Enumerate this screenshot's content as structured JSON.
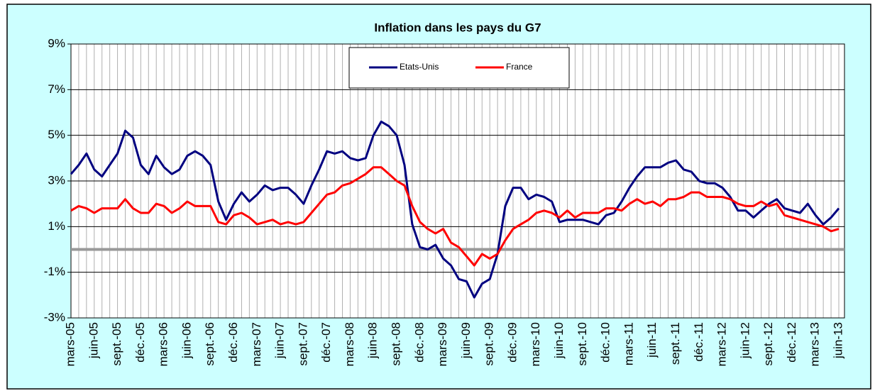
{
  "chart_data": {
    "type": "line",
    "title": "Inflation dans les pays du G7",
    "categories": [
      "mars-05",
      null,
      null,
      "juin-05",
      null,
      null,
      "sept.-05",
      null,
      null,
      "déc.-05",
      null,
      null,
      "mars-06",
      null,
      null,
      "juin-06",
      null,
      null,
      "sept.-06",
      null,
      null,
      "déc.-06",
      null,
      null,
      "mars-07",
      null,
      null,
      "juin-07",
      null,
      null,
      "sept.-07",
      null,
      null,
      "déc.-07",
      null,
      null,
      "mars-08",
      null,
      null,
      "juin-08",
      null,
      null,
      "sept.-08",
      null,
      null,
      "déc.-08",
      null,
      null,
      "mars-09",
      null,
      null,
      "juin-09",
      null,
      null,
      "sept.-09",
      null,
      null,
      "déc.-09",
      null,
      null,
      "mars-10",
      null,
      null,
      "juin-10",
      null,
      null,
      "sept.-10",
      null,
      null,
      "déc.-10",
      null,
      null,
      "mars-11",
      null,
      null,
      "juin-11",
      null,
      null,
      "sept.-11",
      null,
      null,
      "déc.-11",
      null,
      null,
      "mars-12",
      null,
      null,
      "juin-12",
      null,
      null,
      "sept.-12",
      null,
      null,
      "déc.-12",
      null,
      null,
      "mars-13",
      null,
      null,
      "juin-13"
    ],
    "series": [
      {
        "name": "Etats-Unis",
        "color": "#000080",
        "values": [
          3.3,
          3.7,
          4.2,
          3.5,
          3.2,
          3.7,
          4.2,
          5.2,
          4.9,
          3.7,
          3.3,
          4.1,
          3.6,
          3.3,
          3.5,
          4.1,
          4.3,
          4.1,
          3.7,
          2.1,
          1.3,
          2.0,
          2.5,
          2.1,
          2.4,
          2.8,
          2.6,
          2.7,
          2.7,
          2.4,
          2.0,
          2.8,
          3.5,
          4.3,
          4.2,
          4.3,
          4.0,
          3.9,
          4.0,
          5.0,
          5.6,
          5.4,
          5.0,
          3.7,
          1.1,
          0.1,
          0.0,
          0.2,
          -0.4,
          -0.7,
          -1.3,
          -1.4,
          -2.1,
          -1.5,
          -1.3,
          -0.2,
          1.9,
          2.7,
          2.7,
          2.2,
          2.4,
          2.3,
          2.1,
          1.2,
          1.3,
          1.3,
          1.3,
          1.2,
          1.1,
          1.5,
          1.6,
          2.1,
          2.7,
          3.2,
          3.6,
          3.6,
          3.6,
          3.8,
          3.9,
          3.5,
          3.4,
          3.0,
          2.9,
          2.9,
          2.7,
          2.3,
          1.7,
          1.7,
          1.4,
          1.7,
          2.0,
          2.2,
          1.8,
          1.7,
          1.6,
          2.0,
          1.5,
          1.1,
          1.4,
          1.8
        ]
      },
      {
        "name": "France",
        "color": "#ff0000",
        "values": [
          1.7,
          1.9,
          1.8,
          1.6,
          1.8,
          1.8,
          1.8,
          2.2,
          1.8,
          1.6,
          1.6,
          2.0,
          1.9,
          1.6,
          1.8,
          2.1,
          1.9,
          1.9,
          1.9,
          1.2,
          1.1,
          1.5,
          1.6,
          1.4,
          1.1,
          1.2,
          1.3,
          1.1,
          1.2,
          1.1,
          1.2,
          1.6,
          2.0,
          2.4,
          2.5,
          2.8,
          2.9,
          3.1,
          3.3,
          3.6,
          3.6,
          3.3,
          3.0,
          2.8,
          1.9,
          1.2,
          0.9,
          0.7,
          0.9,
          0.3,
          0.1,
          -0.3,
          -0.7,
          -0.2,
          -0.4,
          -0.2,
          0.4,
          0.9,
          1.1,
          1.3,
          1.6,
          1.7,
          1.6,
          1.4,
          1.7,
          1.4,
          1.6,
          1.6,
          1.6,
          1.8,
          1.8,
          1.7,
          2.0,
          2.2,
          2.0,
          2.1,
          1.9,
          2.2,
          2.2,
          2.3,
          2.5,
          2.5,
          2.3,
          2.3,
          2.3,
          2.2,
          2.0,
          1.9,
          1.9,
          2.1,
          1.9,
          2.0,
          1.5,
          1.4,
          1.3,
          1.2,
          1.1,
          1.0,
          0.8,
          0.9
        ]
      }
    ],
    "ylim": [
      -3,
      9
    ],
    "yticks": [
      {
        "value": -3,
        "label": "-3%"
      },
      {
        "value": -1,
        "label": "-1%"
      },
      {
        "value": 1,
        "label": "1%"
      },
      {
        "value": 3,
        "label": "3%"
      },
      {
        "value": 5,
        "label": "5%"
      },
      {
        "value": 7,
        "label": "7%"
      },
      {
        "value": 9,
        "label": "9%"
      }
    ],
    "grid": true,
    "legend": "top"
  }
}
